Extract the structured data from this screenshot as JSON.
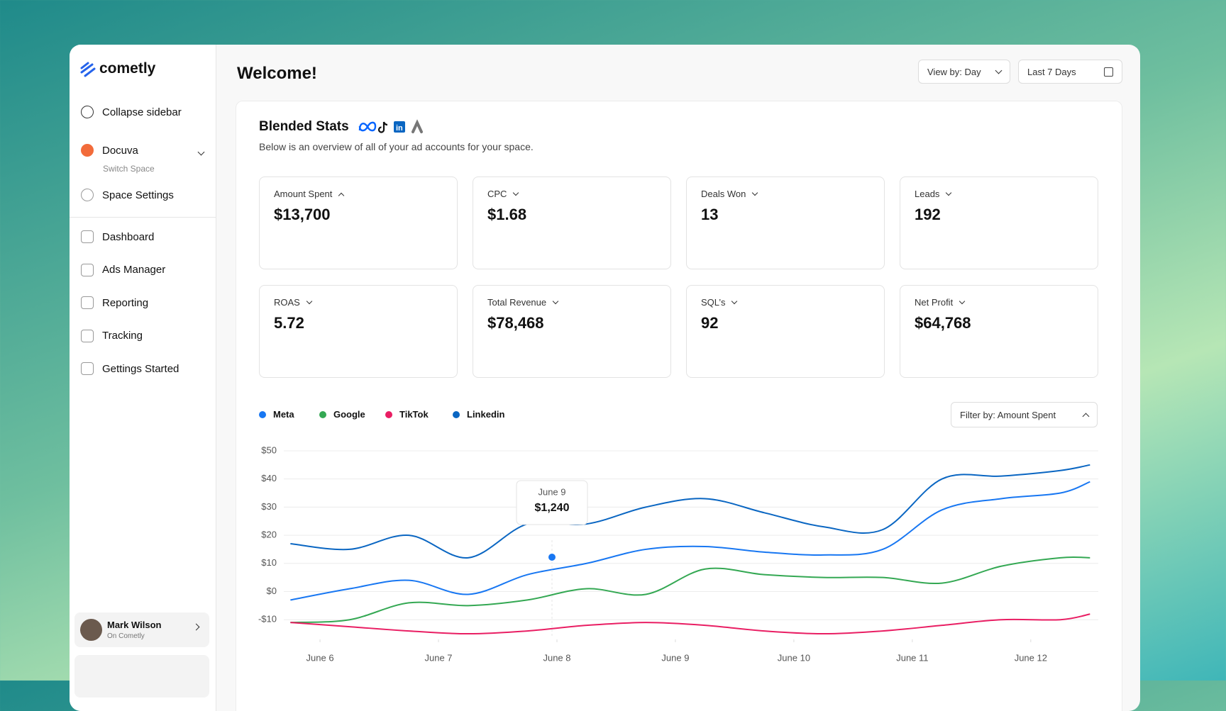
{
  "sidebar": {
    "brand": "cometly",
    "collapse": "Collapse sidebar",
    "space": {
      "name": "Docuva",
      "subtitle": "Switch Space"
    },
    "settings": "Space Settings",
    "nav": [
      "Dashboard",
      "Ads Manager",
      "Reporting",
      "Tracking",
      "Gettings Started"
    ],
    "user": {
      "name": "Mark Wilson",
      "subtitle": "On Cometly"
    }
  },
  "header": {
    "title": "Welcome!",
    "view_by": "View by: Day",
    "date_range": "Last 7 Days"
  },
  "overview": {
    "title": "Blended Stats",
    "subtitle": "Below is an overview of all of your ad accounts for your space.",
    "stats": [
      {
        "label": "Amount Spent",
        "value": "$13,700"
      },
      {
        "label": "CPC",
        "value": "$1.68"
      },
      {
        "label": "Deals Won",
        "value": "13"
      },
      {
        "label": "Leads",
        "value": "192"
      },
      {
        "label": "ROAS",
        "value": "5.72"
      },
      {
        "label": "Total Revenue",
        "value": "$78,468"
      },
      {
        "label": "SQL’s",
        "value": "92"
      },
      {
        "label": "Net Profit",
        "value": "$64,768"
      }
    ]
  },
  "chart_data": {
    "type": "line",
    "filter": "Filter by: Amount Spent",
    "x": [
      5.75,
      6.25,
      6.75,
      7.25,
      7.75,
      8.25,
      8.75,
      9.25,
      9.75,
      10.25,
      10.75,
      11.25,
      11.75,
      12.25,
      12.5
    ],
    "xlim": [
      5.73,
      12.57
    ],
    "xticks": [
      {
        "value": 6,
        "label": "June 6"
      },
      {
        "value": 7,
        "label": "June 7"
      },
      {
        "value": 8,
        "label": "June 8"
      },
      {
        "value": 9,
        "label": "June 9"
      },
      {
        "value": 10,
        "label": "June 10"
      },
      {
        "value": 11,
        "label": "June 11"
      },
      {
        "value": 12,
        "label": "June 12"
      }
    ],
    "ylim": [
      -17,
      52
    ],
    "yticks": [
      {
        "value": 50,
        "label": "$50"
      },
      {
        "value": 40,
        "label": "$40"
      },
      {
        "value": 30,
        "label": "$30"
      },
      {
        "value": 20,
        "label": "$20"
      },
      {
        "value": 10,
        "label": "$10"
      },
      {
        "value": 0,
        "label": "$0"
      },
      {
        "value": -10,
        "label": "-$10"
      }
    ],
    "grid": true,
    "series": [
      {
        "name": "Meta",
        "color": "#1877f2",
        "values": [
          -3,
          1,
          4,
          -1,
          6,
          10,
          15,
          16,
          14,
          13,
          15,
          29,
          33,
          35,
          39
        ]
      },
      {
        "name": "Google",
        "color": "#34a853",
        "values": [
          -11,
          -10,
          -4,
          -5,
          -3,
          1,
          -1,
          8,
          6,
          5,
          5,
          3,
          9,
          12,
          12
        ]
      },
      {
        "name": "TikTok",
        "color": "#e91e63",
        "values": [
          -11,
          -12.5,
          -14,
          -15,
          -14,
          -12,
          -11,
          -12,
          -14,
          -15,
          -14,
          -12,
          -10,
          -10,
          -8
        ]
      },
      {
        "name": "Linkedin",
        "color": "#0a66c2",
        "values": [
          17,
          15,
          20,
          12,
          24,
          24,
          30,
          33,
          28,
          23,
          22,
          40,
          41,
          43,
          45
        ]
      }
    ],
    "tooltip": {
      "title": "June 9",
      "value": "$1,240"
    }
  }
}
